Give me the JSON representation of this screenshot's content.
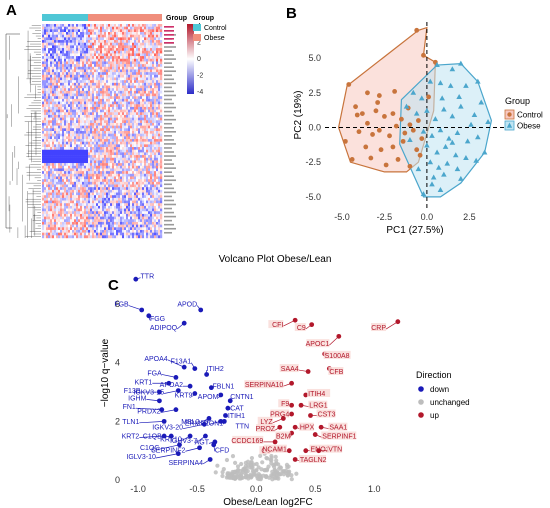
{
  "panels": {
    "a": "A",
    "b": "B",
    "c": "C"
  },
  "heatmap": {
    "annotation_title": "Group",
    "colorbar_ticks": [
      "4",
      "2",
      "0",
      "-2",
      "-4"
    ],
    "legend": {
      "title": "Group",
      "items": [
        {
          "label": "Control",
          "color": "#4fc7d6"
        },
        {
          "label": "Obese",
          "color": "#f08e7c"
        }
      ]
    },
    "group_colors": {
      "control": "#4fc7d6",
      "obese": "#f08e7c"
    },
    "colors": {
      "high": "#b2182b",
      "mid": "#ffffff",
      "low": "#2c2cc8"
    }
  },
  "chart_data": [
    {
      "type": "scatter",
      "xlabel": "PC1 (27.5%)",
      "ylabel": "PC2 (19%)",
      "xlim": [
        -6,
        4.6
      ],
      "ylim": [
        -5.8,
        7.6
      ],
      "xticks": [
        "-5.0",
        "-2.5",
        "0.0",
        "2.5"
      ],
      "yticks": [
        "5.0",
        "2.5",
        "0.0",
        "-2.5",
        "-5.0"
      ],
      "xtick_values": [
        -5,
        -2.5,
        0,
        2.5
      ],
      "ytick_values": [
        5,
        2.5,
        0,
        -2.5,
        -5
      ],
      "legend_title": "Group",
      "legend_position": "right",
      "series": [
        {
          "name": "Control",
          "marker": "circle",
          "color": "#e8d6c8",
          "fill": "#c8743c",
          "hull_color": "#c8743c",
          "hull_fill": "#f7c8c0",
          "hull": [
            [
              -5.2,
              0.0
            ],
            [
              -4.7,
              3.0
            ],
            [
              -0.5,
              7.0
            ],
            [
              0.0,
              7.2
            ],
            [
              -0.2,
              5.2
            ],
            [
              0.5,
              4.7
            ],
            [
              0.4,
              1.2
            ],
            [
              -0.5,
              -2.5
            ],
            [
              -1.2,
              -3.2
            ],
            [
              -2.5,
              -3.2
            ],
            [
              -4.5,
              -2.5
            ]
          ],
          "points": [
            [
              -0.6,
              7.0
            ],
            [
              -0.2,
              5.2
            ],
            [
              0.5,
              4.7
            ],
            [
              -4.6,
              3.1
            ],
            [
              -3.5,
              2.5
            ],
            [
              -2.8,
              2.3
            ],
            [
              -4.2,
              1.5
            ],
            [
              -3.8,
              1.0
            ],
            [
              -3.0,
              1.2
            ],
            [
              -2.5,
              0.8
            ],
            [
              -2.0,
              1.0
            ],
            [
              -1.5,
              0.6
            ],
            [
              -1.0,
              0.2
            ],
            [
              -0.5,
              0.5
            ],
            [
              -3.5,
              0.3
            ],
            [
              -4.0,
              -0.3
            ],
            [
              -3.2,
              -0.5
            ],
            [
              -2.8,
              -0.2
            ],
            [
              -2.2,
              -0.6
            ],
            [
              -1.8,
              0.1
            ],
            [
              -1.3,
              -0.4
            ],
            [
              -0.8,
              -0.2
            ],
            [
              -4.8,
              -1.0
            ],
            [
              -3.6,
              -1.4
            ],
            [
              -2.7,
              -1.6
            ],
            [
              -2.0,
              -1.4
            ],
            [
              -1.4,
              -1.0
            ],
            [
              -0.6,
              -1.6
            ],
            [
              -3.3,
              -2.2
            ],
            [
              -2.4,
              -2.7
            ],
            [
              -1.7,
              -2.3
            ],
            [
              -1.0,
              -2.8
            ],
            [
              -4.4,
              -2.3
            ],
            [
              0.1,
              2.2
            ],
            [
              -0.3,
              -0.8
            ],
            [
              -2.9,
              1.8
            ],
            [
              -1.9,
              2.6
            ],
            [
              -1.1,
              1.4
            ],
            [
              -4.1,
              0.9
            ],
            [
              -0.4,
              -2.0
            ]
          ]
        },
        {
          "name": "Obese",
          "marker": "triangle",
          "color": "#cfe6f0",
          "fill": "#4ba6cc",
          "hull_color": "#4ba6cc",
          "hull_fill": "#bfe4f2",
          "hull": [
            [
              -1.5,
              2.0
            ],
            [
              0.6,
              4.5
            ],
            [
              2.0,
              4.6
            ],
            [
              3.0,
              3.3
            ],
            [
              3.8,
              0.5
            ],
            [
              3.4,
              -1.8
            ],
            [
              2.0,
              -4.0
            ],
            [
              0.8,
              -5.0
            ],
            [
              -0.2,
              -5.0
            ],
            [
              -1.6,
              -1.2
            ]
          ],
          "points": [
            [
              0.6,
              4.5
            ],
            [
              1.5,
              4.2
            ],
            [
              2.0,
              4.6
            ],
            [
              -0.8,
              2.5
            ],
            [
              -0.3,
              2.1
            ],
            [
              0.2,
              3.3
            ],
            [
              0.8,
              3.2
            ],
            [
              1.4,
              3.0
            ],
            [
              2.3,
              3.0
            ],
            [
              3.0,
              3.3
            ],
            [
              -1.2,
              1.5
            ],
            [
              -0.6,
              1.0
            ],
            [
              0.0,
              1.2
            ],
            [
              0.5,
              0.6
            ],
            [
              1.0,
              1.3
            ],
            [
              1.5,
              0.8
            ],
            [
              2.0,
              1.5
            ],
            [
              2.8,
              0.9
            ],
            [
              3.6,
              0.4
            ],
            [
              -0.2,
              -0.3
            ],
            [
              0.3,
              -0.6
            ],
            [
              0.8,
              -0.2
            ],
            [
              1.3,
              -0.8
            ],
            [
              1.8,
              -0.4
            ],
            [
              2.4,
              -1.0
            ],
            [
              3.0,
              -0.7
            ],
            [
              3.4,
              -1.8
            ],
            [
              -1.0,
              -0.9
            ],
            [
              0.0,
              -1.3
            ],
            [
              0.6,
              -1.8
            ],
            [
              1.1,
              -1.4
            ],
            [
              1.7,
              -2.0
            ],
            [
              2.3,
              -2.2
            ],
            [
              2.9,
              -2.4
            ],
            [
              0.2,
              -2.5
            ],
            [
              0.7,
              -2.9
            ],
            [
              1.2,
              -2.6
            ],
            [
              1.8,
              -3.0
            ],
            [
              2.0,
              -3.7
            ],
            [
              0.4,
              -3.6
            ],
            [
              1.0,
              -3.4
            ],
            [
              0.8,
              -4.5
            ],
            [
              -0.2,
              -4.8
            ],
            [
              0.3,
              -4.1
            ],
            [
              -0.5,
              -3.0
            ],
            [
              1.5,
              -1.1
            ],
            [
              2.6,
              0.2
            ],
            [
              0.9,
              2.1
            ],
            [
              1.9,
              2.2
            ],
            [
              3.2,
              1.8
            ]
          ]
        }
      ]
    },
    {
      "type": "scatter",
      "title": "Volcano Plot Obese/Lean",
      "xlabel": "Obese/Lean log2FC",
      "ylabel": "−log10 q−value",
      "xlim": [
        -1.12,
        1.32
      ],
      "ylim": [
        0,
        7.3
      ],
      "xticks": [
        "-1.0",
        "-0.5",
        "0.0",
        "0.5",
        "1.0"
      ],
      "yticks": [
        "6",
        "4",
        "2",
        "0"
      ],
      "xtick_values": [
        -1.0,
        -0.5,
        0.0,
        0.5,
        1.0
      ],
      "ytick_values": [
        6,
        4,
        2,
        0
      ],
      "legend_title": "Direction",
      "legend_position": "right",
      "legend": [
        {
          "label": "down",
          "color": "#1a1ab8"
        },
        {
          "label": "unchanged",
          "color": "#bdbdbd"
        },
        {
          "label": "up",
          "color": "#b2182b"
        }
      ],
      "down": [
        {
          "label": "TTR",
          "x": -1.02,
          "y": 6.85,
          "lx": -0.98,
          "ly": 6.9
        },
        {
          "label": "APOD",
          "x": -0.47,
          "y": 5.8,
          "lx": -0.5,
          "ly": 5.95
        },
        {
          "label": "FGB",
          "x": -0.97,
          "y": 5.8,
          "lx": -1.08,
          "ly": 5.95
        },
        {
          "label": "FGG",
          "x": -0.91,
          "y": 5.6,
          "lx": -0.9,
          "ly": 5.45
        },
        {
          "label": "ADIPOQ",
          "x": -0.61,
          "y": 5.35,
          "lx": -0.67,
          "ly": 5.15
        },
        {
          "label": "APOA4",
          "x": -0.61,
          "y": 3.85,
          "lx": -0.75,
          "ly": 4.1
        },
        {
          "label": "F13A1",
          "x": -0.52,
          "y": 3.8,
          "lx": -0.55,
          "ly": 4.0
        },
        {
          "label": "ITIH2",
          "x": -0.42,
          "y": 3.6,
          "lx": -0.42,
          "ly": 3.75
        },
        {
          "label": "FGA",
          "x": -0.68,
          "y": 3.5,
          "lx": -0.8,
          "ly": 3.6
        },
        {
          "label": "KRT1",
          "x": -0.74,
          "y": 3.3,
          "lx": -0.88,
          "ly": 3.3
        },
        {
          "label": "APOA2",
          "x": -0.56,
          "y": 3.2,
          "lx": -0.62,
          "ly": 3.2
        },
        {
          "label": "FBLN1",
          "x": -0.38,
          "y": 3.15,
          "lx": -0.37,
          "ly": 3.15
        },
        {
          "label": "IGKV3-15",
          "x": -0.66,
          "y": 3.05,
          "lx": -0.78,
          "ly": 2.95
        },
        {
          "label": "F13B",
          "x": -0.82,
          "y": 3.0,
          "lx": -0.98,
          "ly": 3.0
        },
        {
          "label": "KRT9",
          "x": -0.52,
          "y": 2.95,
          "lx": -0.54,
          "ly": 2.85
        },
        {
          "label": "APOM",
          "x": -0.3,
          "y": 2.9,
          "lx": -0.32,
          "ly": 2.8
        },
        {
          "label": "CNTN1",
          "x": -0.22,
          "y": 2.7,
          "lx": -0.22,
          "ly": 2.8
        },
        {
          "label": "IGHM",
          "x": -0.82,
          "y": 2.7,
          "lx": -0.93,
          "ly": 2.75
        },
        {
          "label": "FN1",
          "x": -0.8,
          "y": 2.4,
          "lx": -1.02,
          "ly": 2.45
        },
        {
          "label": "PRDX2",
          "x": -0.68,
          "y": 2.4,
          "lx": -0.81,
          "ly": 2.3
        },
        {
          "label": "CAT",
          "x": -0.24,
          "y": 2.45,
          "lx": -0.22,
          "ly": 2.4
        },
        {
          "label": "ITIH1",
          "x": -0.26,
          "y": 2.2,
          "lx": -0.24,
          "ly": 2.15
        },
        {
          "label": "TLN1",
          "x": -0.78,
          "y": 2.0,
          "lx": -0.99,
          "ly": 1.95
        },
        {
          "label": "MBL2",
          "x": -0.4,
          "y": 2.1,
          "lx": -0.48,
          "ly": 1.95
        },
        {
          "label": "ERMP1",
          "x": -0.3,
          "y": 2.0,
          "lx": -0.4,
          "ly": 1.9
        },
        {
          "label": "PON1",
          "x": -0.27,
          "y": 2.0,
          "lx": -0.28,
          "ly": 1.9
        },
        {
          "label": "IGKV3-20",
          "x": -0.44,
          "y": 1.9,
          "lx": -0.62,
          "ly": 1.75
        },
        {
          "label": "KRT2",
          "x": -0.78,
          "y": 1.5,
          "lx": -0.99,
          "ly": 1.45
        },
        {
          "label": "C1QB",
          "x": -0.72,
          "y": 1.5,
          "lx": -0.8,
          "ly": 1.45
        },
        {
          "label": "KRT10",
          "x": -0.56,
          "y": 1.5,
          "lx": -0.63,
          "ly": 1.35
        },
        {
          "label": "IGHV3-7",
          "x": -0.43,
          "y": 1.5,
          "lx": -0.5,
          "ly": 1.3
        },
        {
          "label": "AGT",
          "x": -0.35,
          "y": 1.3,
          "lx": -0.4,
          "ly": 1.25
        },
        {
          "label": "C1QC",
          "x": -0.65,
          "y": 1.2,
          "lx": -0.82,
          "ly": 1.05
        },
        {
          "label": "SERPINF2",
          "x": -0.48,
          "y": 1.1,
          "lx": -0.6,
          "ly": 0.98
        },
        {
          "label": "CFD",
          "x": -0.36,
          "y": 1.2,
          "lx": -0.35,
          "ly": 0.98
        },
        {
          "label": "IGLV3-10",
          "x": -0.66,
          "y": 0.9,
          "lx": -0.85,
          "ly": 0.75
        },
        {
          "label": "SERPINA4",
          "x": -0.39,
          "y": 0.7,
          "lx": -0.45,
          "ly": 0.55
        }
      ],
      "up": [
        {
          "label": "C9",
          "x": 0.47,
          "y": 5.3,
          "lx": 0.42,
          "ly": 5.15
        },
        {
          "label": "CRP",
          "x": 1.2,
          "y": 5.4,
          "lx": 1.1,
          "ly": 5.15
        },
        {
          "label": "CFI",
          "x": 0.33,
          "y": 5.45,
          "lx": 0.23,
          "ly": 5.25
        },
        {
          "label": "APOC1",
          "x": 0.7,
          "y": 4.9,
          "lx": 0.62,
          "ly": 4.6
        },
        {
          "label": "S100A8",
          "x": 0.58,
          "y": 4.3,
          "lx": 0.58,
          "ly": 4.2
        },
        {
          "label": "SAA4",
          "x": 0.44,
          "y": 3.7,
          "lx": 0.36,
          "ly": 3.75
        },
        {
          "label": "CFB",
          "x": 0.62,
          "y": 3.8,
          "lx": 0.62,
          "ly": 3.65
        },
        {
          "label": "SERPINA10",
          "x": 0.3,
          "y": 3.3,
          "lx": 0.23,
          "ly": 3.2
        },
        {
          "label": "ITIH4",
          "x": 0.42,
          "y": 2.9,
          "lx": 0.44,
          "ly": 2.9
        },
        {
          "label": "LRG1",
          "x": 0.38,
          "y": 2.55,
          "lx": 0.45,
          "ly": 2.5
        },
        {
          "label": "F9",
          "x": 0.3,
          "y": 2.55,
          "lx": 0.28,
          "ly": 2.55
        },
        {
          "label": "PRG4",
          "x": 0.3,
          "y": 2.25,
          "lx": 0.28,
          "ly": 2.2
        },
        {
          "label": "CST3",
          "x": 0.46,
          "y": 2.2,
          "lx": 0.52,
          "ly": 2.2
        },
        {
          "label": "LYZ",
          "x": 0.23,
          "y": 2.1,
          "lx": 0.14,
          "ly": 1.95
        },
        {
          "label": "PROZ",
          "x": 0.2,
          "y": 1.8,
          "lx": 0.16,
          "ly": 1.7
        },
        {
          "label": "HPX",
          "x": 0.33,
          "y": 1.8,
          "lx": 0.37,
          "ly": 1.75
        },
        {
          "label": "SAA1",
          "x": 0.55,
          "y": 1.8,
          "lx": 0.62,
          "ly": 1.75
        },
        {
          "label": "B2M",
          "x": 0.3,
          "y": 1.6,
          "lx": 0.29,
          "ly": 1.45
        },
        {
          "label": "SERPINF1",
          "x": 0.5,
          "y": 1.55,
          "lx": 0.56,
          "ly": 1.45
        },
        {
          "label": "CCDC169",
          "x": 0.16,
          "y": 1.3,
          "lx": 0.06,
          "ly": 1.3
        },
        {
          "label": "C6",
          "x": 0.2,
          "y": 1.05,
          "lx": 0.12,
          "ly": 0.95
        },
        {
          "label": "NCAM1",
          "x": 0.28,
          "y": 1.0,
          "lx": 0.26,
          "ly": 1.0
        },
        {
          "label": "ENO1",
          "x": 0.42,
          "y": 1.0,
          "lx": 0.46,
          "ly": 1.0
        },
        {
          "label": "VTN",
          "x": 0.53,
          "y": 1.0,
          "lx": 0.61,
          "ly": 1.0
        },
        {
          "label": "TAGLN2",
          "x": 0.33,
          "y": 0.7,
          "lx": 0.37,
          "ly": 0.65
        }
      ],
      "extra_labels": [
        {
          "label": "TTN",
          "x": -0.05,
          "y": 1.8,
          "lx": -0.06,
          "ly": 1.75,
          "color": "#1a1ab8"
        }
      ]
    }
  ]
}
